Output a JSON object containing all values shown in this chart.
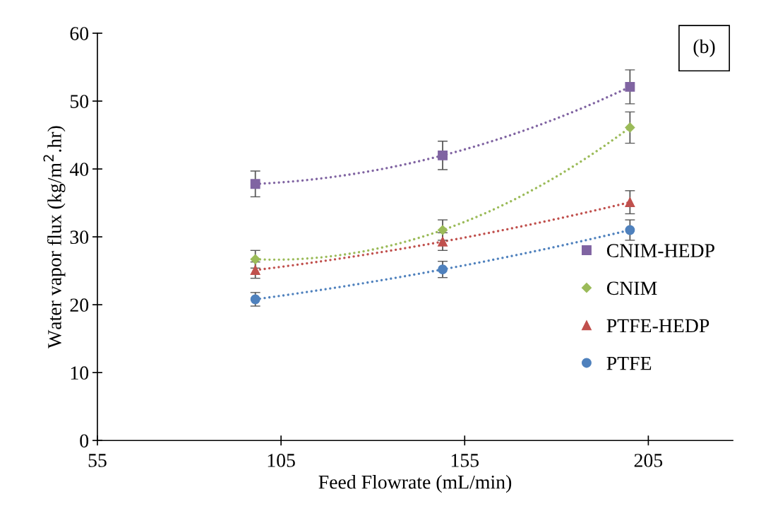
{
  "chart_data": {
    "type": "line",
    "xlabel": "Feed Flowrate (mL/min)",
    "ylabel": "Water vapor flux (kg/m$^{2}$.hr)",
    "x": [
      98,
      149,
      200
    ],
    "xlim": [
      55,
      228
    ],
    "xticks": [
      55,
      105,
      155,
      205
    ],
    "ylim": [
      0,
      60
    ],
    "yticks": [
      0,
      10,
      20,
      30,
      40,
      50,
      60
    ],
    "grid": false,
    "legend": "bottom right",
    "line_style": "dotted",
    "annotations": [
      "(b)"
    ],
    "series": [
      {
        "name": "CNIM-HEDP",
        "color": "#8064a2",
        "marker": "square",
        "values": [
          37.8,
          42.0,
          52.1
        ],
        "errors": [
          1.9,
          2.1,
          2.5
        ]
      },
      {
        "name": "CNIM",
        "color": "#9bbb59",
        "marker": "diamond",
        "values": [
          26.7,
          31.0,
          46.1
        ],
        "errors": [
          1.3,
          1.5,
          2.3
        ]
      },
      {
        "name": "PTFE-HEDP",
        "color": "#c0504d",
        "marker": "triangle",
        "values": [
          25.1,
          29.3,
          35.1
        ],
        "errors": [
          1.2,
          1.3,
          1.7
        ]
      },
      {
        "name": "PTFE",
        "color": "#4f81bd",
        "marker": "circle",
        "values": [
          20.8,
          25.2,
          31.0
        ],
        "errors": [
          1.0,
          1.2,
          1.5
        ]
      }
    ]
  }
}
